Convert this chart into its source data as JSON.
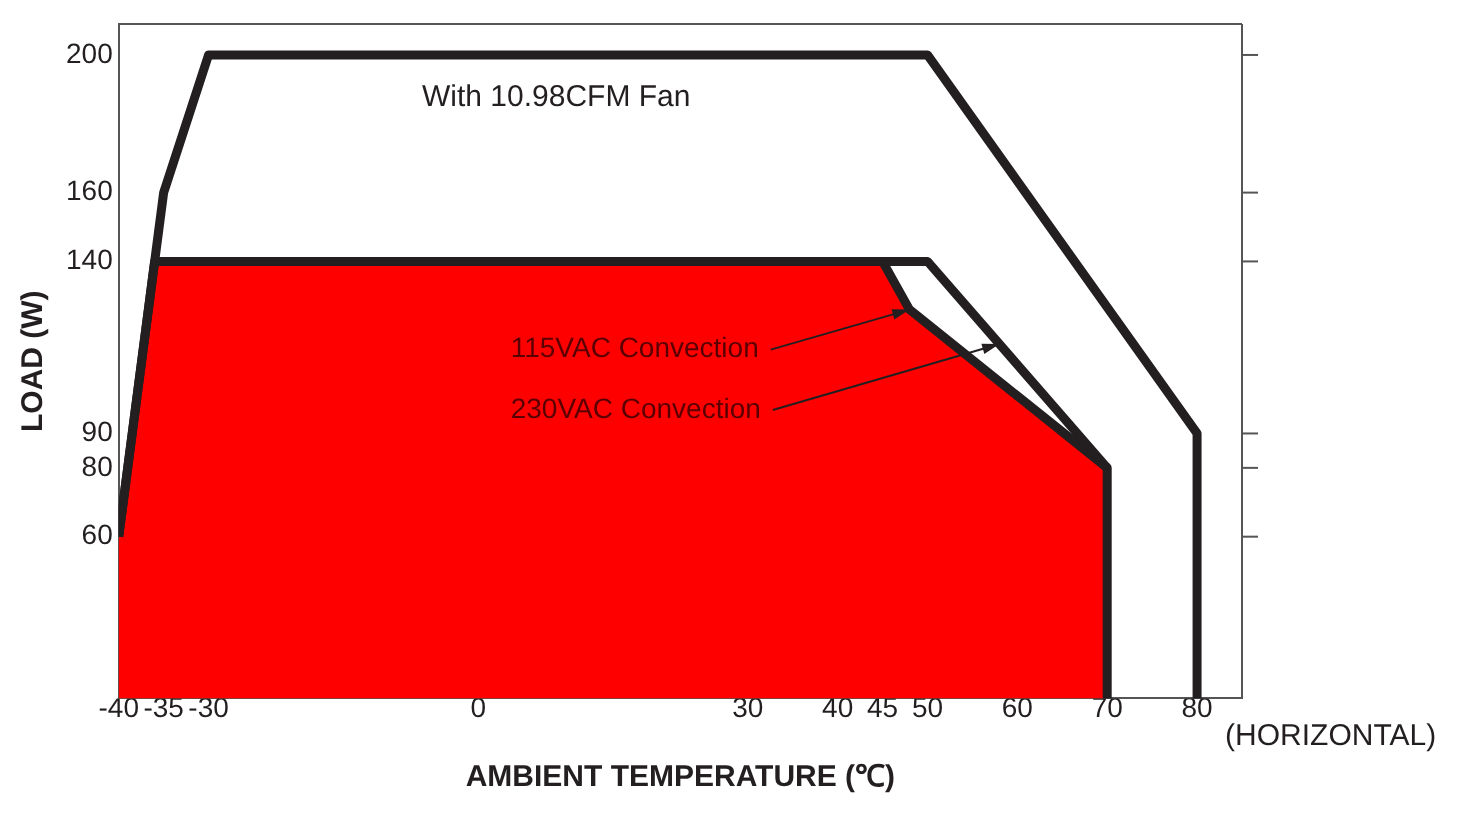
{
  "chart_data": {
    "type": "line",
    "xlabel": "AMBIENT TEMPERATURE (℃)",
    "ylabel": "LOAD (W)",
    "xlim": [
      -40,
      85
    ],
    "xticks": [
      -40,
      -35,
      -30,
      0,
      30,
      40,
      45,
      50,
      60,
      70,
      80
    ],
    "ylim": [
      13,
      209
    ],
    "yticks": [
      60,
      80,
      90,
      140,
      160,
      200
    ],
    "series": [
      {
        "type": "area",
        "color": "#ff0000",
        "x": [
          -40,
          -36,
          45,
          48,
          70,
          70
        ],
        "values": [
          60,
          140,
          140,
          126,
          80,
          13
        ]
      },
      {
        "type": "line",
        "color": "#231f20",
        "x": [
          45,
          50,
          70
        ],
        "values": [
          140,
          140,
          80
        ]
      },
      {
        "type": "line",
        "color": "#231f20",
        "x": [
          -40,
          -35,
          -30,
          50,
          80,
          80
        ],
        "values": [
          60,
          160,
          200,
          200,
          90,
          13
        ]
      }
    ],
    "annotations": [
      "With 10.98CFM Fan",
      "(HORIZONTAL)",
      {
        "text": "115VAC Convection",
        "x": 48,
        "y": 126
      },
      {
        "text": "230VAC Convection",
        "x": 58,
        "y": 116
      }
    ],
    "grid": false,
    "legend": false,
    "marker": "none",
    "line_style": "solid"
  }
}
